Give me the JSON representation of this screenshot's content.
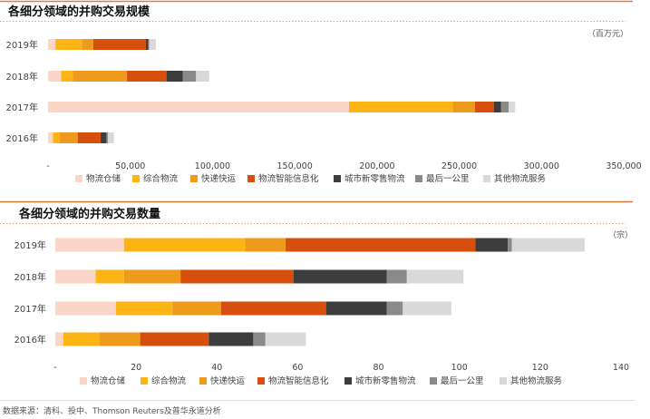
{
  "source": "数据来源：清科、投中、Thomson Reuters及普华永道分析",
  "colors": {
    "accent_line": "#e07b39",
    "dotted_line": "#e8a06a",
    "series": [
      "#fbd5c5",
      "#fdb515",
      "#ee9a1c",
      "#d64f0c",
      "#3d3d3d",
      "#8a8a8a",
      "#d9d9d9"
    ]
  },
  "chart_data": [
    {
      "type": "bar",
      "orientation": "horizontal",
      "stacked": true,
      "title": "各细分领域的并购交易规模",
      "unit": "（百万元）",
      "categories": [
        "2019年",
        "2018年",
        "2017年",
        "2016年"
      ],
      "xlim": [
        0,
        350000
      ],
      "xticks": [
        "-",
        "50,000",
        "100,000",
        "150,000",
        "200,000",
        "250,000",
        "300,000",
        "350,000"
      ],
      "tick_values": [
        0,
        50000,
        100000,
        150000,
        200000,
        250000,
        300000,
        350000
      ],
      "legend_position": "bottom",
      "series": [
        {
          "name": "物流仓储",
          "values": [
            4500,
            8000,
            183000,
            3000
          ]
        },
        {
          "name": "综合物流",
          "values": [
            16000,
            7000,
            63000,
            4000
          ]
        },
        {
          "name": "快递快运",
          "values": [
            7000,
            33000,
            13500,
            11000
          ]
        },
        {
          "name": "物流智能信息化",
          "values": [
            32000,
            24000,
            11500,
            14000
          ]
        },
        {
          "name": "城市新零售物流",
          "values": [
            1500,
            10000,
            4500,
            3500
          ]
        },
        {
          "name": "最后一公里",
          "values": [
            500,
            8000,
            4500,
            1000
          ]
        },
        {
          "name": "其他物流服务",
          "values": [
            4000,
            8000,
            4000,
            3500
          ]
        }
      ]
    },
    {
      "type": "bar",
      "orientation": "horizontal",
      "stacked": true,
      "title": "各细分领域的并购交易数量",
      "unit": "（宗）",
      "categories": [
        "2019年",
        "2018年",
        "2017年",
        "2016年"
      ],
      "xlim": [
        0,
        140
      ],
      "xticks": [
        "-",
        "20",
        "40",
        "60",
        "80",
        "100",
        "120",
        "140"
      ],
      "tick_values": [
        0,
        20,
        40,
        60,
        80,
        100,
        120,
        140
      ],
      "legend_position": "bottom",
      "series": [
        {
          "name": "物流仓储",
          "values": [
            17,
            10,
            15,
            2
          ]
        },
        {
          "name": "综合物流",
          "values": [
            30,
            7,
            14,
            9
          ]
        },
        {
          "name": "快递快运",
          "values": [
            10,
            14,
            12,
            10
          ]
        },
        {
          "name": "物流智能信息化",
          "values": [
            47,
            28,
            26,
            17
          ]
        },
        {
          "name": "城市新零售物流",
          "values": [
            8,
            23,
            15,
            11
          ]
        },
        {
          "name": "最后一公里",
          "values": [
            1,
            5,
            4,
            3
          ]
        },
        {
          "name": "其他物流服务",
          "values": [
            18,
            14,
            12,
            10
          ]
        }
      ]
    }
  ]
}
